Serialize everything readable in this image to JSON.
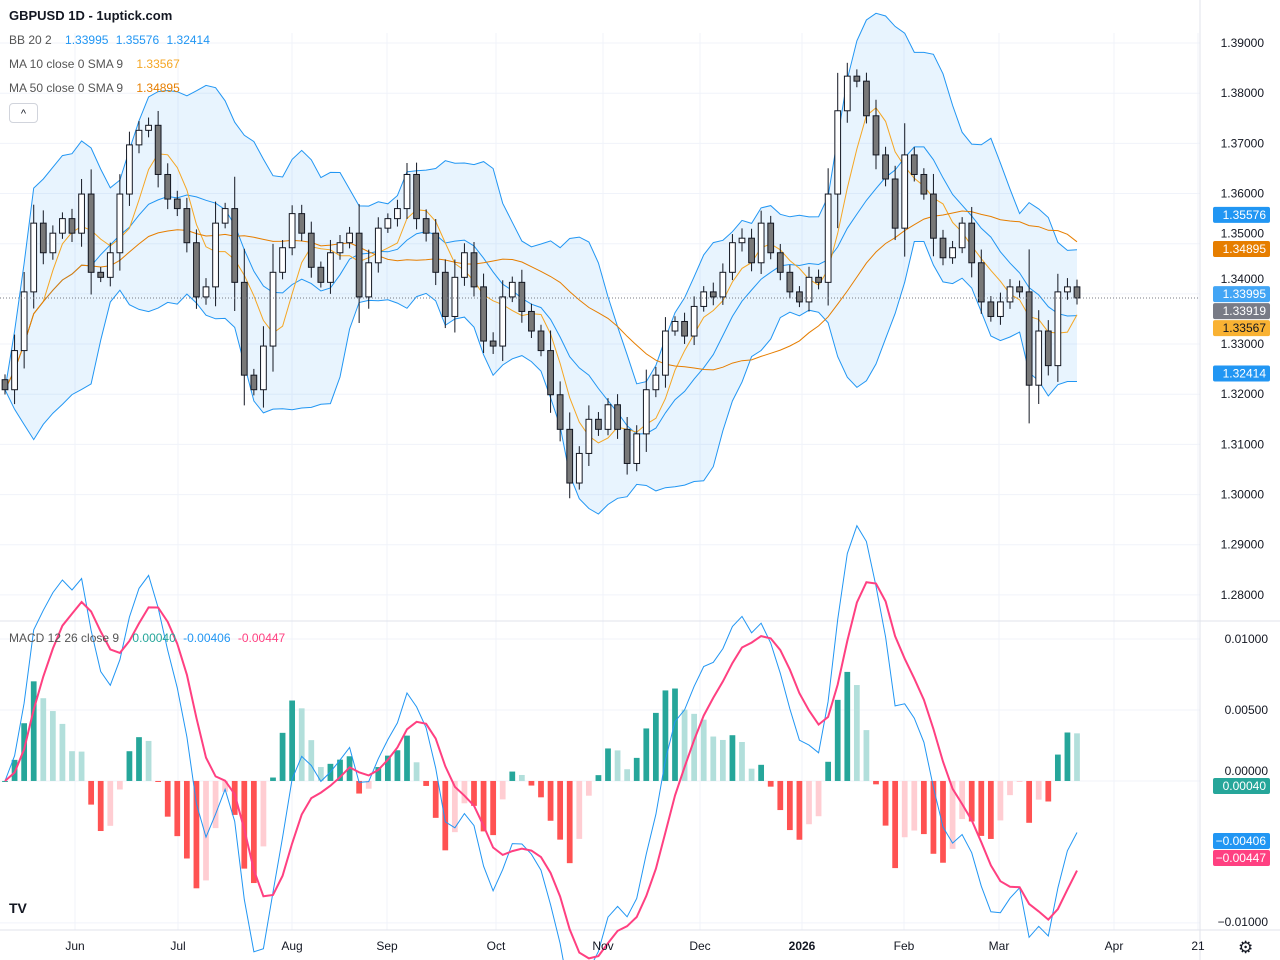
{
  "header": {
    "title": "GBPUSD 1D - 1uptick.com"
  },
  "legend": {
    "bb": {
      "label": "BB 20 2",
      "values": [
        "1.33995",
        "1.35576",
        "1.32414"
      ],
      "color": "#2196f3"
    },
    "ma10": {
      "label": "MA 10 close 0 SMA 9",
      "value": "1.33567",
      "color": "#f5a623"
    },
    "ma50": {
      "label": "MA 50 close 0 SMA 9",
      "value": "1.34895",
      "color": "#e67e00"
    },
    "macd": {
      "label": "MACD 12 26 close 9",
      "values": [
        "0.00040",
        "-0.00406",
        "-0.00447"
      ],
      "colors": [
        "#26a69a",
        "#2196f3",
        "#ff4081"
      ]
    }
  },
  "collapse_button": {
    "label": "^"
  },
  "icons": {
    "logo": "tradingview-logo",
    "settings": "gear-icon"
  },
  "logo_text": "TV",
  "chart_data": {
    "type": "candlestick",
    "symbol": "GBPUSD",
    "interval": "1D",
    "price_axis": {
      "ylim": [
        1.275,
        1.392
      ],
      "ticks": [
        "1.39000",
        "1.38000",
        "1.37000",
        "1.36000",
        "1.35000",
        "1.34000",
        "1.33000",
        "1.32000",
        "1.31000",
        "1.30000",
        "1.29000",
        "1.28000"
      ]
    },
    "macd_axis": {
      "ylim": [
        -0.0105,
        0.0112
      ],
      "ticks": [
        "0.01000",
        "0.00500",
        "0.00000",
        "-0.01000"
      ]
    },
    "x_ticks": [
      "Jun",
      "Jul",
      "Aug",
      "Sep",
      "Oct",
      "Nov",
      "Dec",
      "2026",
      "Feb",
      "Mar",
      "Apr",
      "21"
    ],
    "closes": [
      1.3209,
      1.3287,
      1.3404,
      1.3541,
      1.3482,
      1.3521,
      1.355,
      1.3521,
      1.3599,
      1.3443,
      1.3433,
      1.3482,
      1.3599,
      1.3697,
      1.3726,
      1.3736,
      1.3638,
      1.3589,
      1.357,
      1.3502,
      1.3394,
      1.3414,
      1.3541,
      1.357,
      1.3423,
      1.3238,
      1.3209,
      1.3296,
      1.3443,
      1.3492,
      1.356,
      1.3521,
      1.3453,
      1.3423,
      1.3482,
      1.3502,
      1.3521,
      1.3394,
      1.3462,
      1.3531,
      1.355,
      1.357,
      1.3638,
      1.355,
      1.3521,
      1.3443,
      1.3355,
      1.3433,
      1.3482,
      1.3414,
      1.3306,
      1.3296,
      1.3394,
      1.3423,
      1.3365,
      1.3326,
      1.3287,
      1.3199,
      1.313,
      1.3023,
      1.3082,
      1.315,
      1.313,
      1.3179,
      1.313,
      1.3062,
      1.3121,
      1.3209,
      1.3238,
      1.3326,
      1.3345,
      1.3316,
      1.3375,
      1.3404,
      1.3394,
      1.3443,
      1.3502,
      1.3511,
      1.3462,
      1.3541,
      1.3482,
      1.3443,
      1.3404,
      1.3384,
      1.3433,
      1.3423,
      1.3599,
      1.3765,
      1.3834,
      1.3824,
      1.3755,
      1.3677,
      1.3629,
      1.3531,
      1.3677,
      1.3638,
      1.3599,
      1.3511,
      1.3472,
      1.3492,
      1.3541,
      1.3462,
      1.3384,
      1.3355,
      1.3384,
      1.3414,
      1.3404,
      1.3218,
      1.3326,
      1.3257,
      1.3404,
      1.3414,
      1.33919
    ],
    "last_price": "1.33919",
    "price_labels": [
      {
        "value": "1.35576",
        "color": "#2196f3",
        "text_color": "#ffffff"
      },
      {
        "value": "1.34895",
        "color": "#e67e00",
        "text_color": "#ffffff"
      },
      {
        "value": "1.33995",
        "color": "#42a5f5",
        "text_color": "#ffffff"
      },
      {
        "value": "1.33919",
        "color": "#787b86",
        "text_color": "#ffffff"
      },
      {
        "value": "1.33567",
        "color": "#f9b233",
        "text_color": "#131722"
      },
      {
        "value": "1.32414",
        "color": "#2196f3",
        "text_color": "#ffffff"
      }
    ],
    "macd_labels": [
      {
        "value": "0.00040",
        "color": "#26a69a"
      },
      {
        "value": "-0.00406",
        "color": "#2196f3"
      },
      {
        "value": "-0.00447",
        "color": "#ff4081"
      }
    ],
    "colors": {
      "up": "#ffffff",
      "down": "#787878",
      "wick": "#131722",
      "bb": "#2196f3",
      "bb_fill": "rgba(33,150,243,0.1)",
      "ma10": "#f5a623",
      "ma50": "#e67e00",
      "macd": "#2196f3",
      "signal": "#ff4081",
      "hist_up_strong": "#26a69a",
      "hist_up_weak": "#b2dfdb",
      "hist_down_strong": "#ff5252",
      "hist_down_weak": "#ffcdd2",
      "grid": "#f0f3fa"
    },
    "grid": true
  }
}
